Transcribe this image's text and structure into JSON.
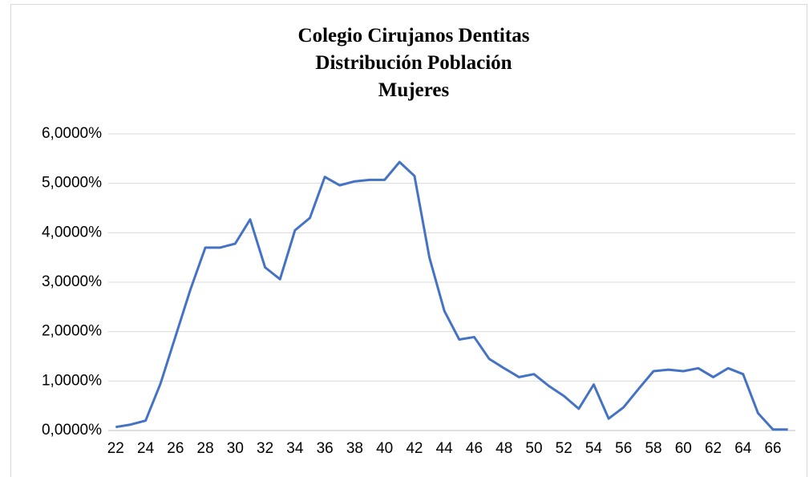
{
  "chart_data": {
    "type": "line",
    "title": [
      "Colegio Cirujanos Dentitas",
      "Distribución Población",
      "Mujeres"
    ],
    "x": [
      22,
      23,
      24,
      25,
      26,
      27,
      28,
      29,
      30,
      31,
      32,
      33,
      34,
      35,
      36,
      37,
      38,
      39,
      40,
      41,
      42,
      43,
      44,
      45,
      46,
      47,
      48,
      49,
      50,
      51,
      52,
      53,
      54,
      55,
      56,
      57,
      58,
      59,
      60,
      61,
      62,
      63,
      64,
      65,
      66,
      67
    ],
    "series": [
      {
        "color": "#4472c4",
        "values": [
          0.07,
          0.12,
          0.2,
          0.95,
          1.9,
          2.85,
          3.7,
          3.7,
          3.78,
          4.27,
          3.3,
          3.06,
          4.05,
          4.3,
          5.13,
          4.96,
          5.04,
          5.07,
          5.07,
          5.43,
          5.15,
          3.5,
          2.42,
          1.84,
          1.89,
          1.45,
          1.26,
          1.08,
          1.14,
          0.9,
          0.7,
          0.44,
          0.93,
          0.24,
          0.47,
          0.84,
          1.2,
          1.23,
          1.2,
          1.26,
          1.08,
          1.26,
          1.14,
          0.35,
          0.02,
          0.02
        ]
      }
    ],
    "xlim": [
      21.5,
      67.5
    ],
    "xticks": [
      22,
      24,
      26,
      28,
      30,
      32,
      34,
      36,
      38,
      40,
      42,
      44,
      46,
      48,
      50,
      52,
      54,
      56,
      58,
      60,
      62,
      64,
      66
    ],
    "ylim": [
      0,
      6
    ],
    "yticks": [
      {
        "value": 0,
        "label": "0,0000%"
      },
      {
        "value": 1,
        "label": "1,0000%"
      },
      {
        "value": 2,
        "label": "2,0000%"
      },
      {
        "value": 3,
        "label": "3,0000%"
      },
      {
        "value": 4,
        "label": "4,0000%"
      },
      {
        "value": 5,
        "label": "5,0000%"
      },
      {
        "value": 6,
        "label": "6,0000%"
      }
    ],
    "grid": true
  }
}
